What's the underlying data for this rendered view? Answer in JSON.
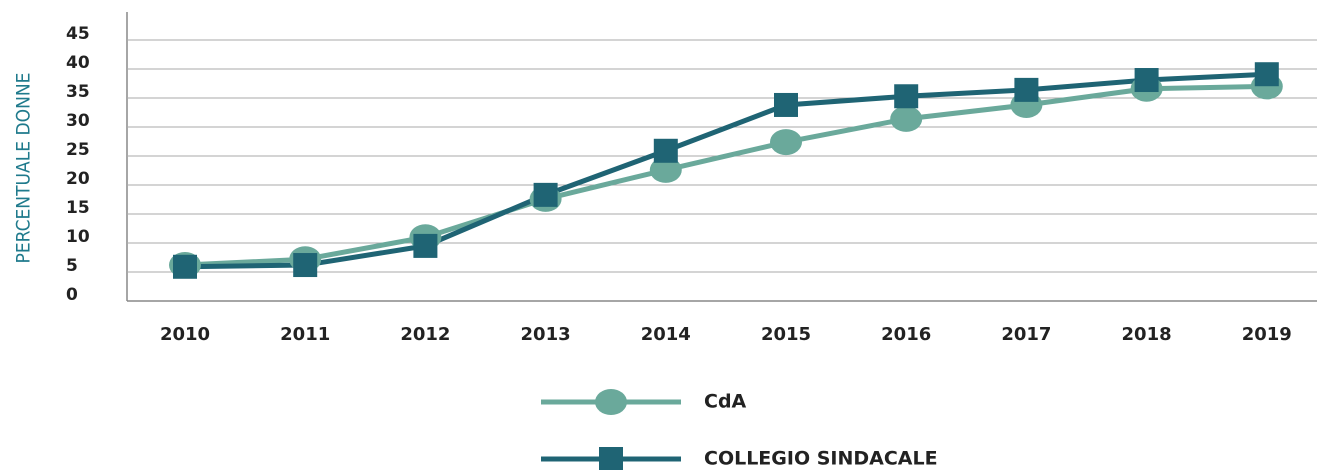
{
  "chart_data": {
    "type": "line",
    "y_label": "PERCENTUALE DONNE",
    "x": [
      "2010",
      "2011",
      "2012",
      "2013",
      "2014",
      "2015",
      "2016",
      "2017",
      "2018",
      "2019"
    ],
    "series": [
      {
        "name": "CdA",
        "color": "#6aa99b",
        "marker": "circle",
        "values": [
          6.2,
          7.2,
          11,
          17.6,
          22.6,
          27.4,
          31.4,
          33.8,
          36.6,
          37
        ]
      },
      {
        "name": "COLLEGIO SINDACALE",
        "color": "#1f6474",
        "marker": "square",
        "values": [
          5.9,
          6.2,
          9.5,
          18.3,
          25.9,
          33.8,
          35.3,
          36.4,
          38.1,
          39.1
        ]
      }
    ],
    "ylim": [
      0,
      45
    ],
    "yticks": [
      0,
      5,
      10,
      15,
      20,
      25,
      30,
      35,
      40,
      45
    ],
    "grid": true
  }
}
